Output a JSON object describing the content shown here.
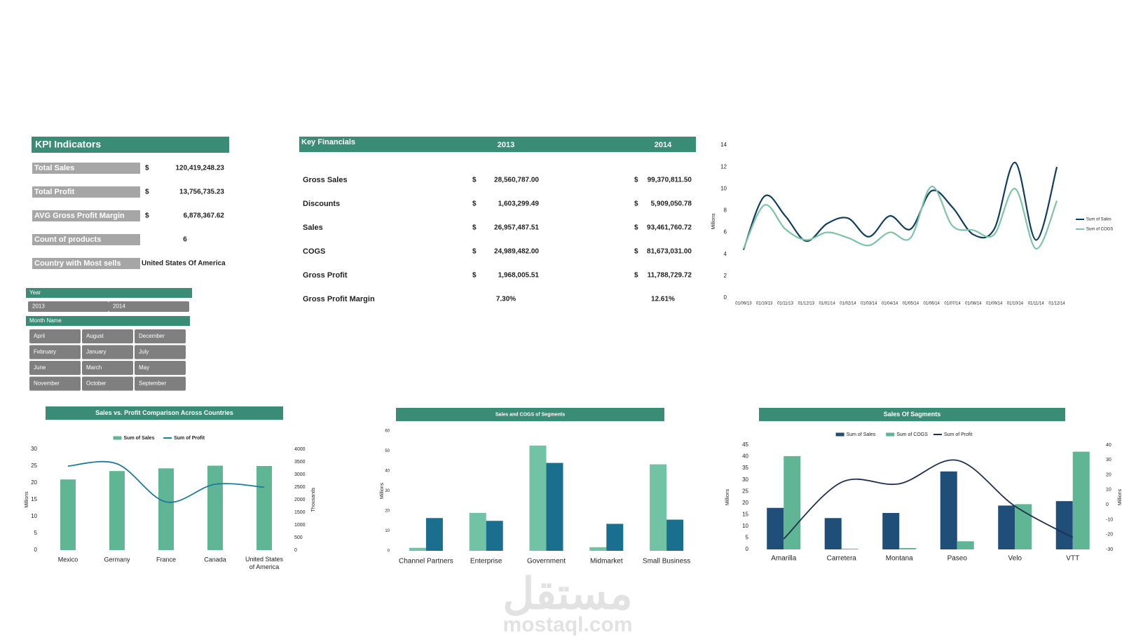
{
  "kpi": {
    "title": "KPI Indicators",
    "rows": [
      {
        "label": "Total Sales",
        "currency": "$",
        "value": "120,419,248.23"
      },
      {
        "label": "Total Profit",
        "currency": "$",
        "value": "13,756,735.23"
      },
      {
        "label": "AVG Gross Profit Margin",
        "currency": "$",
        "value": "6,878,367.62"
      },
      {
        "label": "Count of products",
        "value": "6"
      },
      {
        "label": "Country with Most sells",
        "value": "United States Of America"
      }
    ]
  },
  "key_financials": {
    "header": [
      "Key Financials",
      "2013",
      "2014"
    ],
    "rows": [
      {
        "label": "Gross Sales",
        "currency": "$",
        "v2013": "28,560,787.00",
        "v2014": "99,370,811.50"
      },
      {
        "label": "Discounts",
        "currency": "$",
        "v2013": "1,603,299.49",
        "v2014": "5,909,050.78"
      },
      {
        "label": "Sales",
        "currency": "$",
        "v2013": "26,957,487.51",
        "v2014": "93,461,760.72"
      },
      {
        "label": "COGS",
        "currency": "$",
        "v2013": "24,989,482.00",
        "v2014": "81,673,031.00"
      },
      {
        "label": "Gross Profit",
        "currency": "$",
        "v2013": "1,968,005.51",
        "v2014": "11,788,729.72"
      },
      {
        "label": "Gross Profit Margin",
        "v2013": "7.30%",
        "v2014": "12.61%"
      }
    ]
  },
  "slicers": [
    {
      "title": "Year",
      "items": [
        "2013",
        "2014"
      ]
    },
    {
      "title": "Month Name",
      "items": [
        "April",
        "August",
        "December",
        "February",
        "January",
        "July",
        "June",
        "March",
        "May",
        "November",
        "October",
        "September"
      ]
    }
  ],
  "chart_data": [
    {
      "type": "line",
      "x": [
        "01/09/13",
        "01/10/13",
        "01/11/13",
        "01/12/13",
        "01/01/14",
        "01/02/14",
        "01/03/14",
        "01/04/14",
        "01/05/14",
        "01/06/14",
        "01/07/14",
        "01/08/14",
        "01/09/14",
        "01/10/14",
        "01/11/14",
        "01/12/14"
      ],
      "y_label": "Millions",
      "ylim": [
        0,
        14
      ],
      "yticks": [
        0,
        2,
        4,
        6,
        8,
        10,
        12,
        14
      ],
      "legend": "right",
      "series": [
        {
          "name": "Sum of Sales",
          "color": "#0f3d5e",
          "values": [
            4.4,
            9.3,
            7.5,
            5.2,
            6.8,
            7.3,
            5.6,
            7.5,
            6.3,
            9.8,
            8.3,
            5.8,
            6.3,
            12.4,
            5.3,
            12.0
          ]
        },
        {
          "name": "Sum of COGS",
          "color": "#7cc4a4",
          "values": [
            4.5,
            8.5,
            6.3,
            5.3,
            6.0,
            5.5,
            4.8,
            6.0,
            5.5,
            10.2,
            6.6,
            6.2,
            5.8,
            10.0,
            4.5,
            8.9
          ]
        }
      ]
    },
    {
      "type": "combo",
      "title": "Sales vs. Profit Comparison Across Countries",
      "categories": [
        "Mexico",
        "Germany",
        "France",
        "Canada",
        "United States of America"
      ],
      "y_label": "Millions",
      "y2_label": "Thousands",
      "ylim": [
        0,
        30
      ],
      "yticks": [
        0,
        5,
        10,
        15,
        20,
        25,
        30
      ],
      "y2lim": [
        0,
        4000
      ],
      "y2ticks": [
        0,
        500,
        1000,
        1500,
        2000,
        2500,
        3000,
        3500,
        4000
      ],
      "legend": "top",
      "series": [
        {
          "name": "Sum of Sales",
          "type": "bar",
          "color": "#5fb594",
          "values": [
            21.0,
            23.5,
            24.3,
            25.1,
            25.0
          ]
        },
        {
          "name": "Sum of Profit",
          "type": "line",
          "axis": "y2",
          "color": "#1f7a9c",
          "values": [
            3330,
            3420,
            1910,
            2610,
            2490
          ]
        }
      ]
    },
    {
      "type": "bar",
      "title": "Sales and COGS of Segments",
      "categories": [
        "Channel Partners",
        "Enterprise",
        "Government",
        "Midmarket",
        "Small Business"
      ],
      "y_label": "Millions",
      "ylim": [
        0,
        60
      ],
      "yticks": [
        0,
        10,
        20,
        30,
        40,
        50,
        60
      ],
      "series": [
        {
          "color": "#72c2a6",
          "values": [
            1.5,
            19.0,
            52.7,
            1.8,
            43.3
          ]
        },
        {
          "color": "#1a6e8e",
          "values": [
            16.4,
            15.0,
            44.0,
            13.5,
            15.6
          ]
        }
      ]
    },
    {
      "type": "combo",
      "title": "Sales Of Sagments",
      "categories": [
        "Amarilla",
        "Carretera",
        "Montana",
        "Paseo",
        "Velo",
        "VTT"
      ],
      "y_label": "Millions",
      "y2_label": "Millions",
      "ylim": [
        0,
        45
      ],
      "yticks": [
        0,
        5,
        10,
        15,
        20,
        25,
        30,
        35,
        40,
        45
      ],
      "y2lim": [
        -30,
        40
      ],
      "y2ticks": [
        -30,
        -20,
        -10,
        0,
        10,
        20,
        30,
        40
      ],
      "legend": "top",
      "series": [
        {
          "name": "Sum of Sales",
          "type": "bar",
          "color": "#1f4e79",
          "values": [
            17.9,
            13.5,
            15.7,
            33.6,
            18.9,
            20.8
          ]
        },
        {
          "name": "Sum of COGS",
          "type": "bar",
          "color": "#5fb594",
          "values": [
            40.2,
            0.3,
            0.6,
            3.5,
            19.5,
            42.1
          ]
        },
        {
          "name": "Sum of Profit",
          "type": "line",
          "axis": "y2",
          "color": "#1f2f4f",
          "values": [
            -23,
            15,
            14,
            29.7,
            -1,
            -22
          ]
        }
      ]
    }
  ],
  "watermark": {
    "logo": "مستقل",
    "site": "mostaql.com"
  }
}
